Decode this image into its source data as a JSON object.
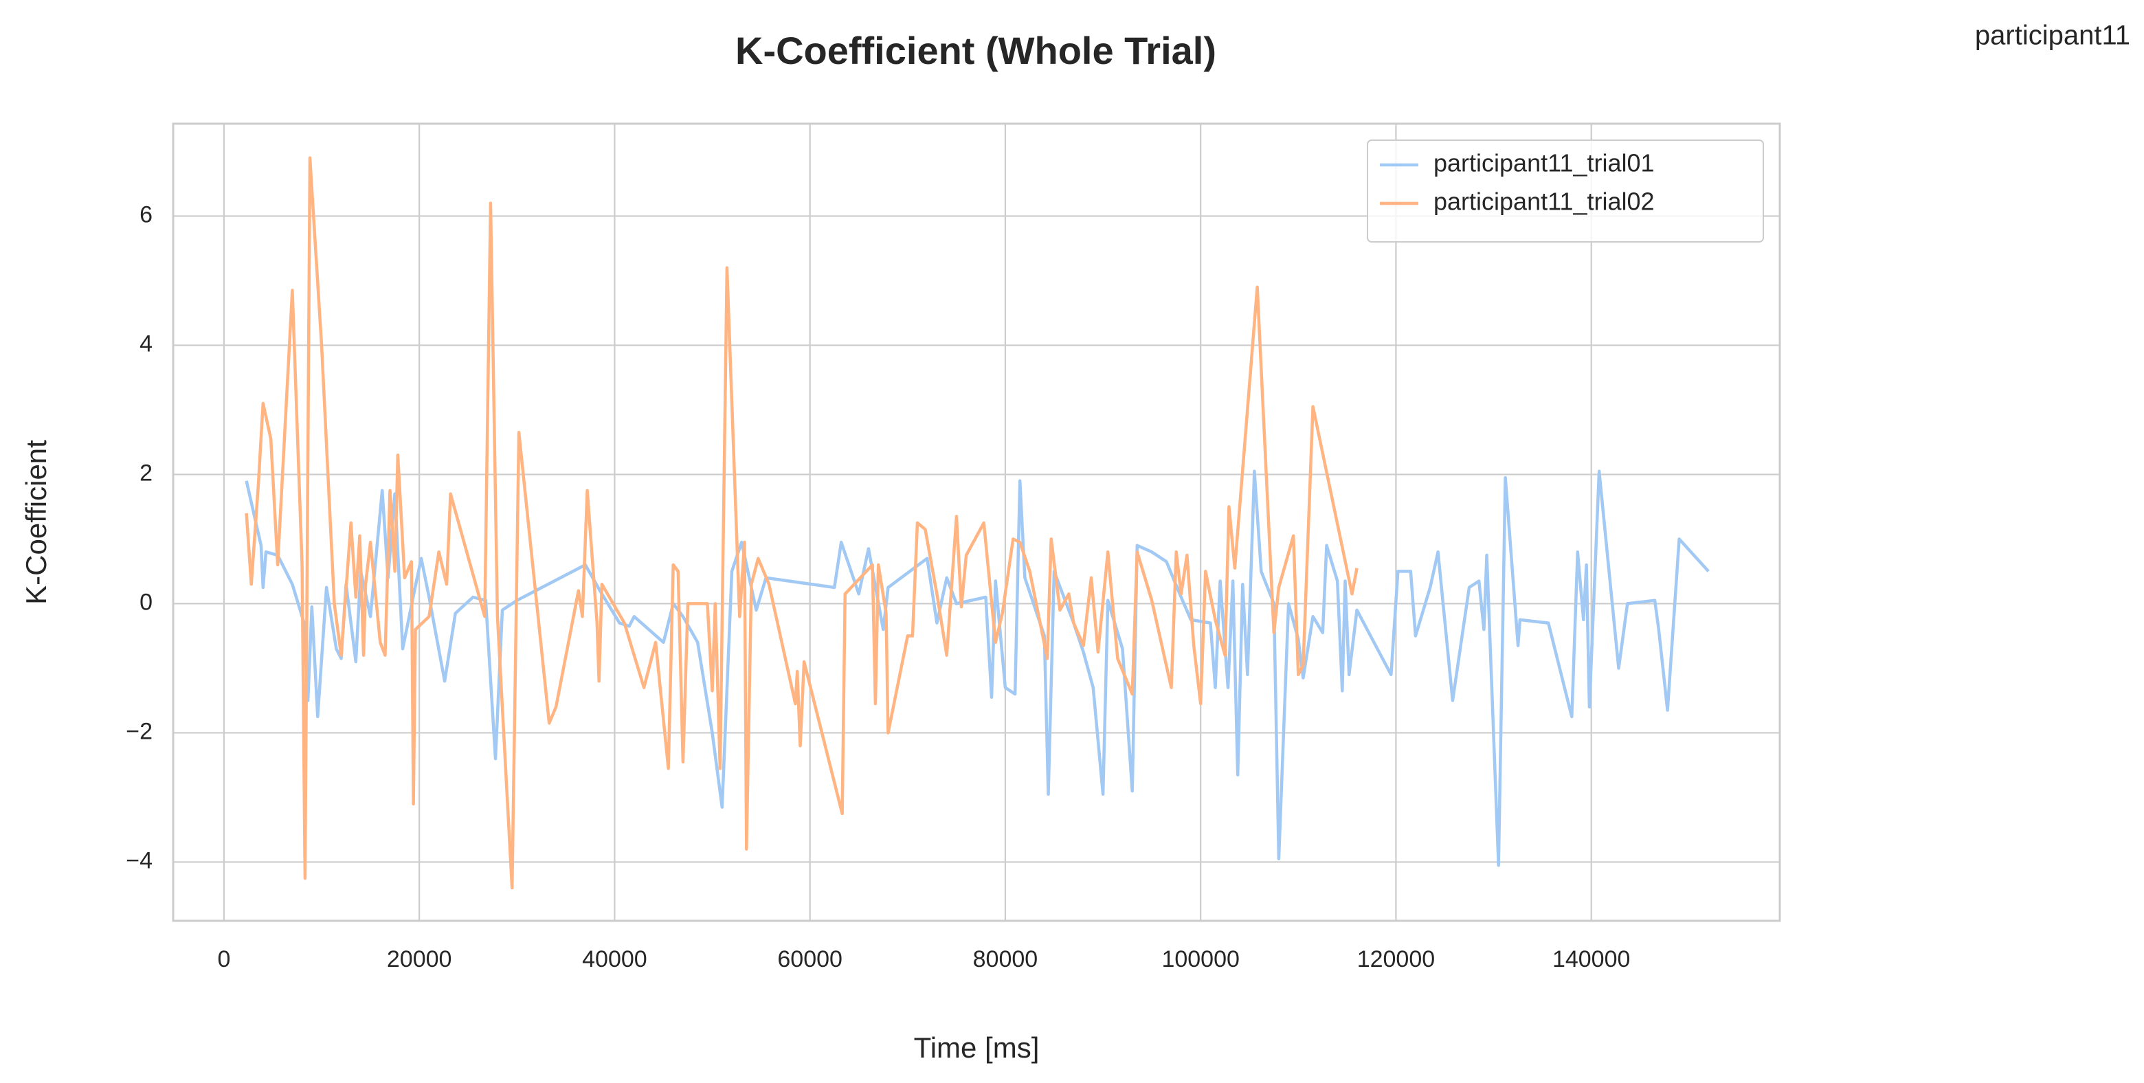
{
  "chart_data": {
    "type": "line",
    "title": "K-Coefficient (Whole Trial)",
    "suptitle": "participant11",
    "xlabel": "Time [ms]",
    "ylabel": "K-Coefficient",
    "xlim": [
      -5200,
      159300
    ],
    "ylim": [
      -4.91,
      7.43
    ],
    "xticks": [
      0,
      20000,
      40000,
      60000,
      80000,
      100000,
      120000,
      140000
    ],
    "yticks": [
      {
        "value": -4,
        "label": "−4"
      },
      {
        "value": -2,
        "label": "−2"
      },
      0,
      2,
      4,
      6
    ],
    "grid": true,
    "legend": "upper right",
    "series": [
      {
        "name": "participant11_trial01",
        "color": "#a1c9f4",
        "x": [
          2300,
          3800,
          4000,
          4300,
          5500,
          7000,
          8200,
          8600,
          9000,
          9600,
          10500,
          11500,
          12000,
          12500,
          13500,
          14000,
          15000,
          16200,
          16800,
          17500,
          18300,
          19500,
          20200,
          21000,
          22600,
          23700,
          25500,
          26800,
          27800,
          28500,
          30000,
          37000,
          38500,
          40500,
          41500,
          42000,
          45000,
          46000,
          47000,
          48500,
          50000,
          51000,
          52000,
          53000,
          54500,
          55500,
          62500,
          63200,
          65000,
          66000,
          67500,
          68000,
          72000,
          73000,
          74000,
          75000,
          78000,
          78600,
          79000,
          80000,
          81000,
          81500,
          82000,
          84000,
          84400,
          85000,
          87000,
          88000,
          89000,
          90000,
          90500,
          92000,
          93000,
          93500,
          95000,
          96500,
          98000,
          99000,
          101000,
          101500,
          102000,
          102800,
          103300,
          103800,
          104300,
          104800,
          105500,
          106200,
          107500,
          108000,
          109000,
          110000,
          110500,
          111500,
          112500,
          112900,
          114000,
          114500,
          114800,
          115200,
          116000,
          119500,
          120200,
          121500,
          122000,
          123500,
          124300,
          125800,
          127500,
          128500,
          129000,
          129300,
          130500,
          131200,
          132500,
          132700,
          135600,
          138000,
          138600,
          139200,
          139500,
          139800,
          140800,
          142800,
          143700,
          146500,
          146900,
          147800,
          149000,
          152000
        ],
        "values": [
          1.9,
          0.9,
          0.25,
          0.8,
          0.75,
          0.3,
          -0.3,
          -1.5,
          -0.05,
          -1.75,
          0.25,
          -0.7,
          -0.85,
          0.3,
          -0.9,
          0.5,
          -0.2,
          1.75,
          0.4,
          1.7,
          -0.7,
          0.2,
          0.7,
          0.1,
          -1.2,
          -0.15,
          0.1,
          0.05,
          -2.4,
          -0.1,
          0.05,
          0.6,
          0.2,
          -0.3,
          -0.35,
          -0.2,
          -0.6,
          0.0,
          -0.2,
          -0.6,
          -2.0,
          -3.15,
          0.5,
          0.95,
          -0.1,
          0.4,
          0.25,
          0.95,
          0.15,
          0.85,
          -0.4,
          0.25,
          0.7,
          -0.3,
          0.4,
          0.0,
          0.1,
          -1.45,
          0.35,
          -1.3,
          -1.4,
          1.9,
          0.4,
          -0.5,
          -2.95,
          0.5,
          -0.3,
          -0.75,
          -1.3,
          -2.95,
          0.05,
          -0.7,
          -2.9,
          0.9,
          0.8,
          0.65,
          0.1,
          -0.25,
          -0.3,
          -1.3,
          0.35,
          -1.3,
          0.35,
          -2.65,
          0.3,
          -1.1,
          2.05,
          0.5,
          0.0,
          -3.95,
          0.0,
          -0.55,
          -1.15,
          -0.2,
          -0.45,
          0.9,
          0.35,
          -1.35,
          0.35,
          -1.1,
          -0.1,
          -1.1,
          0.5,
          0.5,
          -0.5,
          0.25,
          0.8,
          -1.5,
          0.25,
          0.35,
          -0.4,
          0.75,
          -4.05,
          1.95,
          -0.65,
          -0.25,
          -0.3,
          -1.75,
          0.8,
          -0.25,
          0.6,
          -1.6,
          2.05,
          -1.0,
          0.0,
          0.05,
          -0.4,
          -1.65,
          1.0,
          0.5
        ]
      },
      {
        "name": "participant11_trial02",
        "color": "#ffb482",
        "x": [
          2300,
          2800,
          3500,
          4000,
          4800,
          5500,
          7000,
          8000,
          8300,
          8800,
          10000,
          11300,
          12000,
          13000,
          13500,
          13900,
          14300,
          14500,
          15000,
          16000,
          16500,
          17000,
          17500,
          17800,
          18500,
          19200,
          19400,
          19600,
          21000,
          22000,
          22800,
          23200,
          26700,
          27300,
          28000,
          29500,
          30200,
          33300,
          34000,
          36300,
          36700,
          37200,
          38200,
          38400,
          38700,
          41000,
          43000,
          44200,
          45500,
          46000,
          46500,
          47000,
          47500,
          48000,
          49500,
          50000,
          50300,
          50800,
          51500,
          52800,
          53300,
          53500,
          54000,
          54700,
          55800,
          58500,
          58700,
          59000,
          59400,
          63300,
          63600,
          66400,
          66700,
          67000,
          67800,
          68000,
          70000,
          70500,
          71000,
          71800,
          73000,
          74000,
          75000,
          75500,
          76000,
          77800,
          79000,
          79700,
          80800,
          81500,
          82500,
          84300,
          84700,
          85600,
          86500,
          87000,
          88000,
          88800,
          89500,
          90500,
          91500,
          93000,
          93500,
          95000,
          97000,
          97500,
          98000,
          98600,
          99300,
          100000,
          100500,
          101500,
          102500,
          102900,
          103500,
          105800,
          107500,
          108000,
          109500,
          110000,
          110500,
          111500,
          115500,
          116000
        ],
        "values": [
          1.4,
          0.3,
          1.8,
          3.1,
          2.55,
          0.6,
          4.85,
          0.6,
          -4.25,
          6.9,
          4.0,
          0.0,
          -0.8,
          1.25,
          0.1,
          1.05,
          -0.8,
          0.3,
          0.95,
          -0.6,
          -0.8,
          1.75,
          0.5,
          2.3,
          0.4,
          0.65,
          -3.1,
          -0.4,
          -0.2,
          0.8,
          0.3,
          1.7,
          -0.2,
          6.2,
          -0.2,
          -4.4,
          2.65,
          -1.85,
          -1.6,
          0.2,
          -0.2,
          1.75,
          -0.3,
          -1.2,
          0.3,
          -0.3,
          -1.3,
          -0.6,
          -2.55,
          0.6,
          0.5,
          -2.45,
          0.0,
          0.0,
          0.0,
          -1.35,
          0.0,
          -2.55,
          5.2,
          -0.2,
          0.95,
          -3.8,
          0.3,
          0.7,
          0.3,
          -1.55,
          -1.05,
          -2.2,
          -0.9,
          -3.25,
          0.15,
          0.6,
          -1.55,
          0.6,
          -0.15,
          -2.0,
          -0.5,
          -0.5,
          1.25,
          1.15,
          0.15,
          -0.8,
          1.35,
          -0.05,
          0.75,
          1.25,
          -0.6,
          -0.15,
          1.0,
          0.95,
          0.5,
          -0.85,
          1.0,
          -0.1,
          0.15,
          -0.3,
          -0.65,
          0.4,
          -0.75,
          0.8,
          -0.85,
          -1.4,
          0.8,
          0.05,
          -1.3,
          0.8,
          0.15,
          0.75,
          -0.65,
          -1.55,
          0.5,
          -0.25,
          -0.8,
          1.5,
          0.55,
          4.9,
          -0.45,
          0.25,
          1.05,
          -1.1,
          -0.95,
          3.05,
          0.15,
          0.55
        ]
      }
    ]
  }
}
